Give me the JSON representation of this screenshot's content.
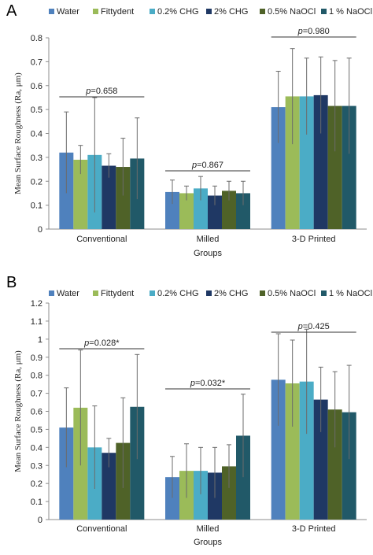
{
  "colors": {
    "Water": "#4f81bd",
    "Fittydent": "#9bbb59",
    "0.2% CHG": "#4bacc6",
    "2% CHG": "#1f3864",
    "0.5% NaOCl": "#4f6228",
    "1 % NaOCl": "#215968"
  },
  "chart_data": [
    {
      "panel": "A",
      "type": "bar",
      "xlabel": "Groups",
      "ylabel": "Mean Surface Roughness (Ra, μm)",
      "ylim": [
        0,
        0.8
      ],
      "yticks": [
        "0",
        "0.1",
        "0.2",
        "0.3",
        "0.4",
        "0.5",
        "0.6",
        "0.7",
        "0.8"
      ],
      "categories": [
        "Conventional",
        "Milled",
        "3-D Printed"
      ],
      "legend": "top",
      "grid": false,
      "pvalues": [
        "p=0.658",
        "p=0.867",
        "p=0.980"
      ],
      "series": [
        {
          "name": "Water",
          "values": [
            0.32,
            0.155,
            0.51
          ],
          "errors": [
            0.17,
            0.05,
            0.15
          ]
        },
        {
          "name": "Fittydent",
          "values": [
            0.29,
            0.15,
            0.555
          ],
          "errors": [
            0.06,
            0.03,
            0.2
          ]
        },
        {
          "name": "0.2% CHG",
          "values": [
            0.31,
            0.17,
            0.555
          ],
          "errors": [
            0.24,
            0.05,
            0.16
          ]
        },
        {
          "name": "2% CHG",
          "values": [
            0.265,
            0.14,
            0.56
          ],
          "errors": [
            0.05,
            0.04,
            0.16
          ]
        },
        {
          "name": "0.5% NaOCl",
          "values": [
            0.26,
            0.16,
            0.515
          ],
          "errors": [
            0.12,
            0.04,
            0.19
          ]
        },
        {
          "name": "1 % NaOCl",
          "values": [
            0.295,
            0.15,
            0.515
          ],
          "errors": [
            0.17,
            0.05,
            0.2
          ]
        }
      ]
    },
    {
      "panel": "B",
      "type": "bar",
      "xlabel": "Groups",
      "ylabel": "Mean Surface Roughness (Ra, μm)",
      "ylim": [
        0,
        1.2
      ],
      "yticks": [
        "0",
        "0.1",
        "0.2",
        "0.3",
        "0.4",
        "0.5",
        "0.6",
        "0.7",
        "0.8",
        "0.9",
        "1",
        "1.1",
        "1.2"
      ],
      "categories": [
        "Conventional",
        "Milled",
        "3-D Printed"
      ],
      "legend": "top",
      "grid": false,
      "pvalues": [
        "p=0.028*",
        "p=0.032*",
        "p=0.425"
      ],
      "series": [
        {
          "name": "Water",
          "values": [
            0.51,
            0.235,
            0.775
          ],
          "errors": [
            0.22,
            0.115,
            0.255
          ]
        },
        {
          "name": "Fittydent",
          "values": [
            0.62,
            0.27,
            0.755
          ],
          "errors": [
            0.32,
            0.15,
            0.24
          ]
        },
        {
          "name": "0.2% CHG",
          "values": [
            0.4,
            0.27,
            0.765
          ],
          "errors": [
            0.23,
            0.13,
            0.29
          ]
        },
        {
          "name": "2% CHG",
          "values": [
            0.37,
            0.26,
            0.665
          ],
          "errors": [
            0.08,
            0.14,
            0.18
          ]
        },
        {
          "name": "0.5% NaOCl",
          "values": [
            0.425,
            0.295,
            0.61
          ],
          "errors": [
            0.25,
            0.12,
            0.21
          ]
        },
        {
          "name": "1 % NaOCl",
          "values": [
            0.625,
            0.465,
            0.595
          ],
          "errors": [
            0.29,
            0.23,
            0.26
          ]
        }
      ]
    }
  ]
}
